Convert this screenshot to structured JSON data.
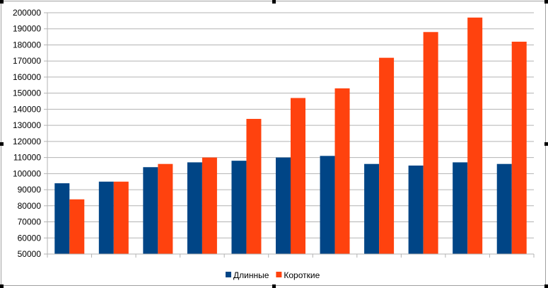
{
  "chart_data": {
    "type": "bar",
    "categories": [
      "",
      "",
      "",
      "",
      "",
      "",
      "",
      "",
      "",
      "",
      ""
    ],
    "series": [
      {
        "name": "Длинные",
        "color": "#004586",
        "values": [
          94000,
          95000,
          104000,
          107000,
          108000,
          110000,
          111000,
          106000,
          105000,
          107000,
          106000
        ]
      },
      {
        "name": "Короткие",
        "color": "#ff420e",
        "values": [
          84000,
          95000,
          106000,
          110000,
          134000,
          147000,
          153000,
          172000,
          188000,
          197000,
          182000
        ]
      }
    ],
    "title": "",
    "xlabel": "",
    "ylabel": "",
    "ylim": [
      50000,
      200000
    ],
    "yticks": [
      "50000",
      "60000",
      "70000",
      "80000",
      "90000",
      "100000",
      "110000",
      "120000",
      "130000",
      "140000",
      "150000",
      "160000",
      "170000",
      "180000",
      "190000",
      "200000"
    ],
    "grid": true,
    "legend_position": "bottom"
  }
}
